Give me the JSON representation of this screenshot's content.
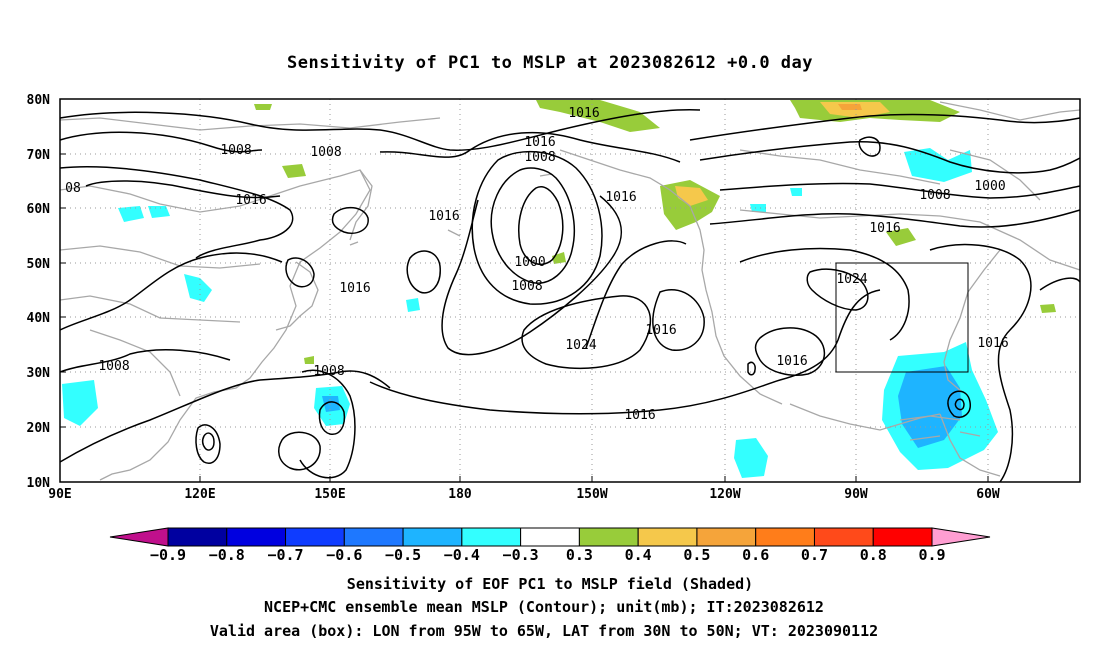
{
  "title": "Sensitivity of PC1 to MSLP at 2023082612 +0.0 day",
  "map": {
    "lon_ticks": [
      "90E",
      "120E",
      "150E",
      "180",
      "150W",
      "120W",
      "90W",
      "60W"
    ],
    "lat_ticks": [
      "80N",
      "70N",
      "60N",
      "50N",
      "40N",
      "30N",
      "20N",
      "10N"
    ],
    "grid": true,
    "valid_box": {
      "lon_west": "95W",
      "lon_east": "65W",
      "lat_south": "30N",
      "lat_north": "50N"
    },
    "contour_labels": [
      "1016",
      "1016",
      "1008",
      "1008",
      "1008",
      "08",
      "1016",
      "1016",
      "1016",
      "1000",
      "1008",
      "1016",
      "1024",
      "1016",
      "1016",
      "1008",
      "1008",
      "1016",
      "1024",
      "1016",
      "1016",
      "1008",
      "1000",
      "1016"
    ],
    "colors": {
      "land_outline": "#a8a8a8",
      "contour": "#000000",
      "grid": "#9a9a9a",
      "pos_03_04": "#98cc3a",
      "pos_04_05": "#f5c84b",
      "pos_05_06": "#f5a43a",
      "neg_03_04": "#33ffff",
      "neg_04_05": "#33ccff"
    }
  },
  "colorbar": {
    "labels": [
      "-0.9",
      "-0.8",
      "-0.7",
      "-0.6",
      "-0.5",
      "-0.4",
      "-0.3",
      "0.3",
      "0.4",
      "0.5",
      "0.6",
      "0.7",
      "0.8",
      "0.9"
    ],
    "colors": [
      "#0000a0",
      "#0000e0",
      "#0f3cff",
      "#1e78ff",
      "#1eb4ff",
      "#33ffff",
      "#ffffff",
      "#98cc3a",
      "#f5c84b",
      "#f5a43a",
      "#ff7d1a",
      "#ff4a1a",
      "#ff0000"
    ],
    "low_arrow_color": "#c0108c",
    "high_arrow_color": "#ff9ed2"
  },
  "captions": [
    "Sensitivity of EOF PC1 to MSLP field (Shaded)",
    "NCEP+CMC ensemble mean MSLP (Contour); unit(mb); IT:2023082612",
    "Valid area (box): LON from 95W to 65W, LAT from 30N to 50N; VT: 2023090112"
  ]
}
